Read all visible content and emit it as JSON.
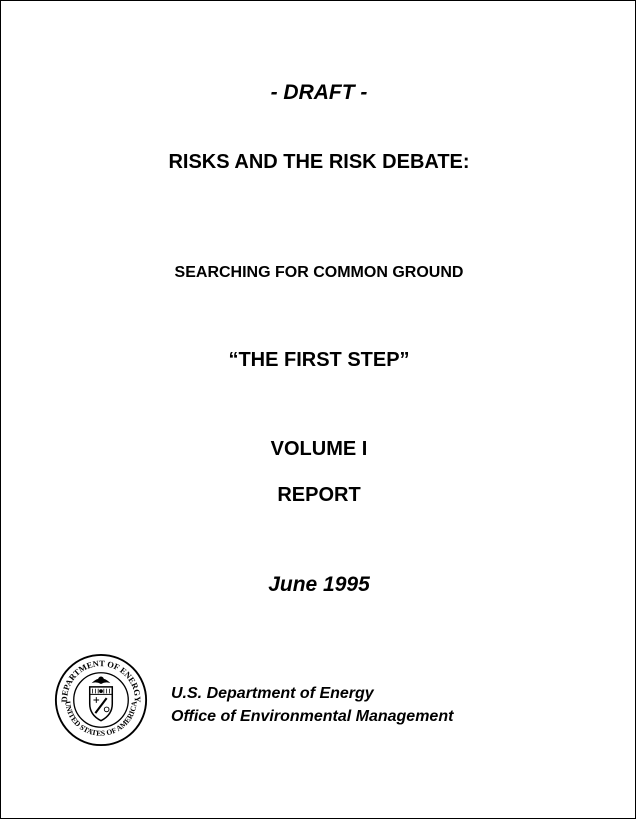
{
  "document": {
    "draft_label": "- DRAFT -",
    "title": "RISKS AND THE RISK DEBATE:",
    "subtitle": "SEARCHING FOR COMMON GROUND",
    "quote": "“THE FIRST STEP”",
    "volume": "VOLUME I",
    "report": "REPORT",
    "date": "June 1995"
  },
  "seal": {
    "text_top": "DEPARTMENT OF ENERGY",
    "text_bottom": "UNITED STATES OF AMERICA"
  },
  "agency": {
    "line1": "U.S. Department of Energy",
    "line2": "Office of Environmental Management"
  }
}
